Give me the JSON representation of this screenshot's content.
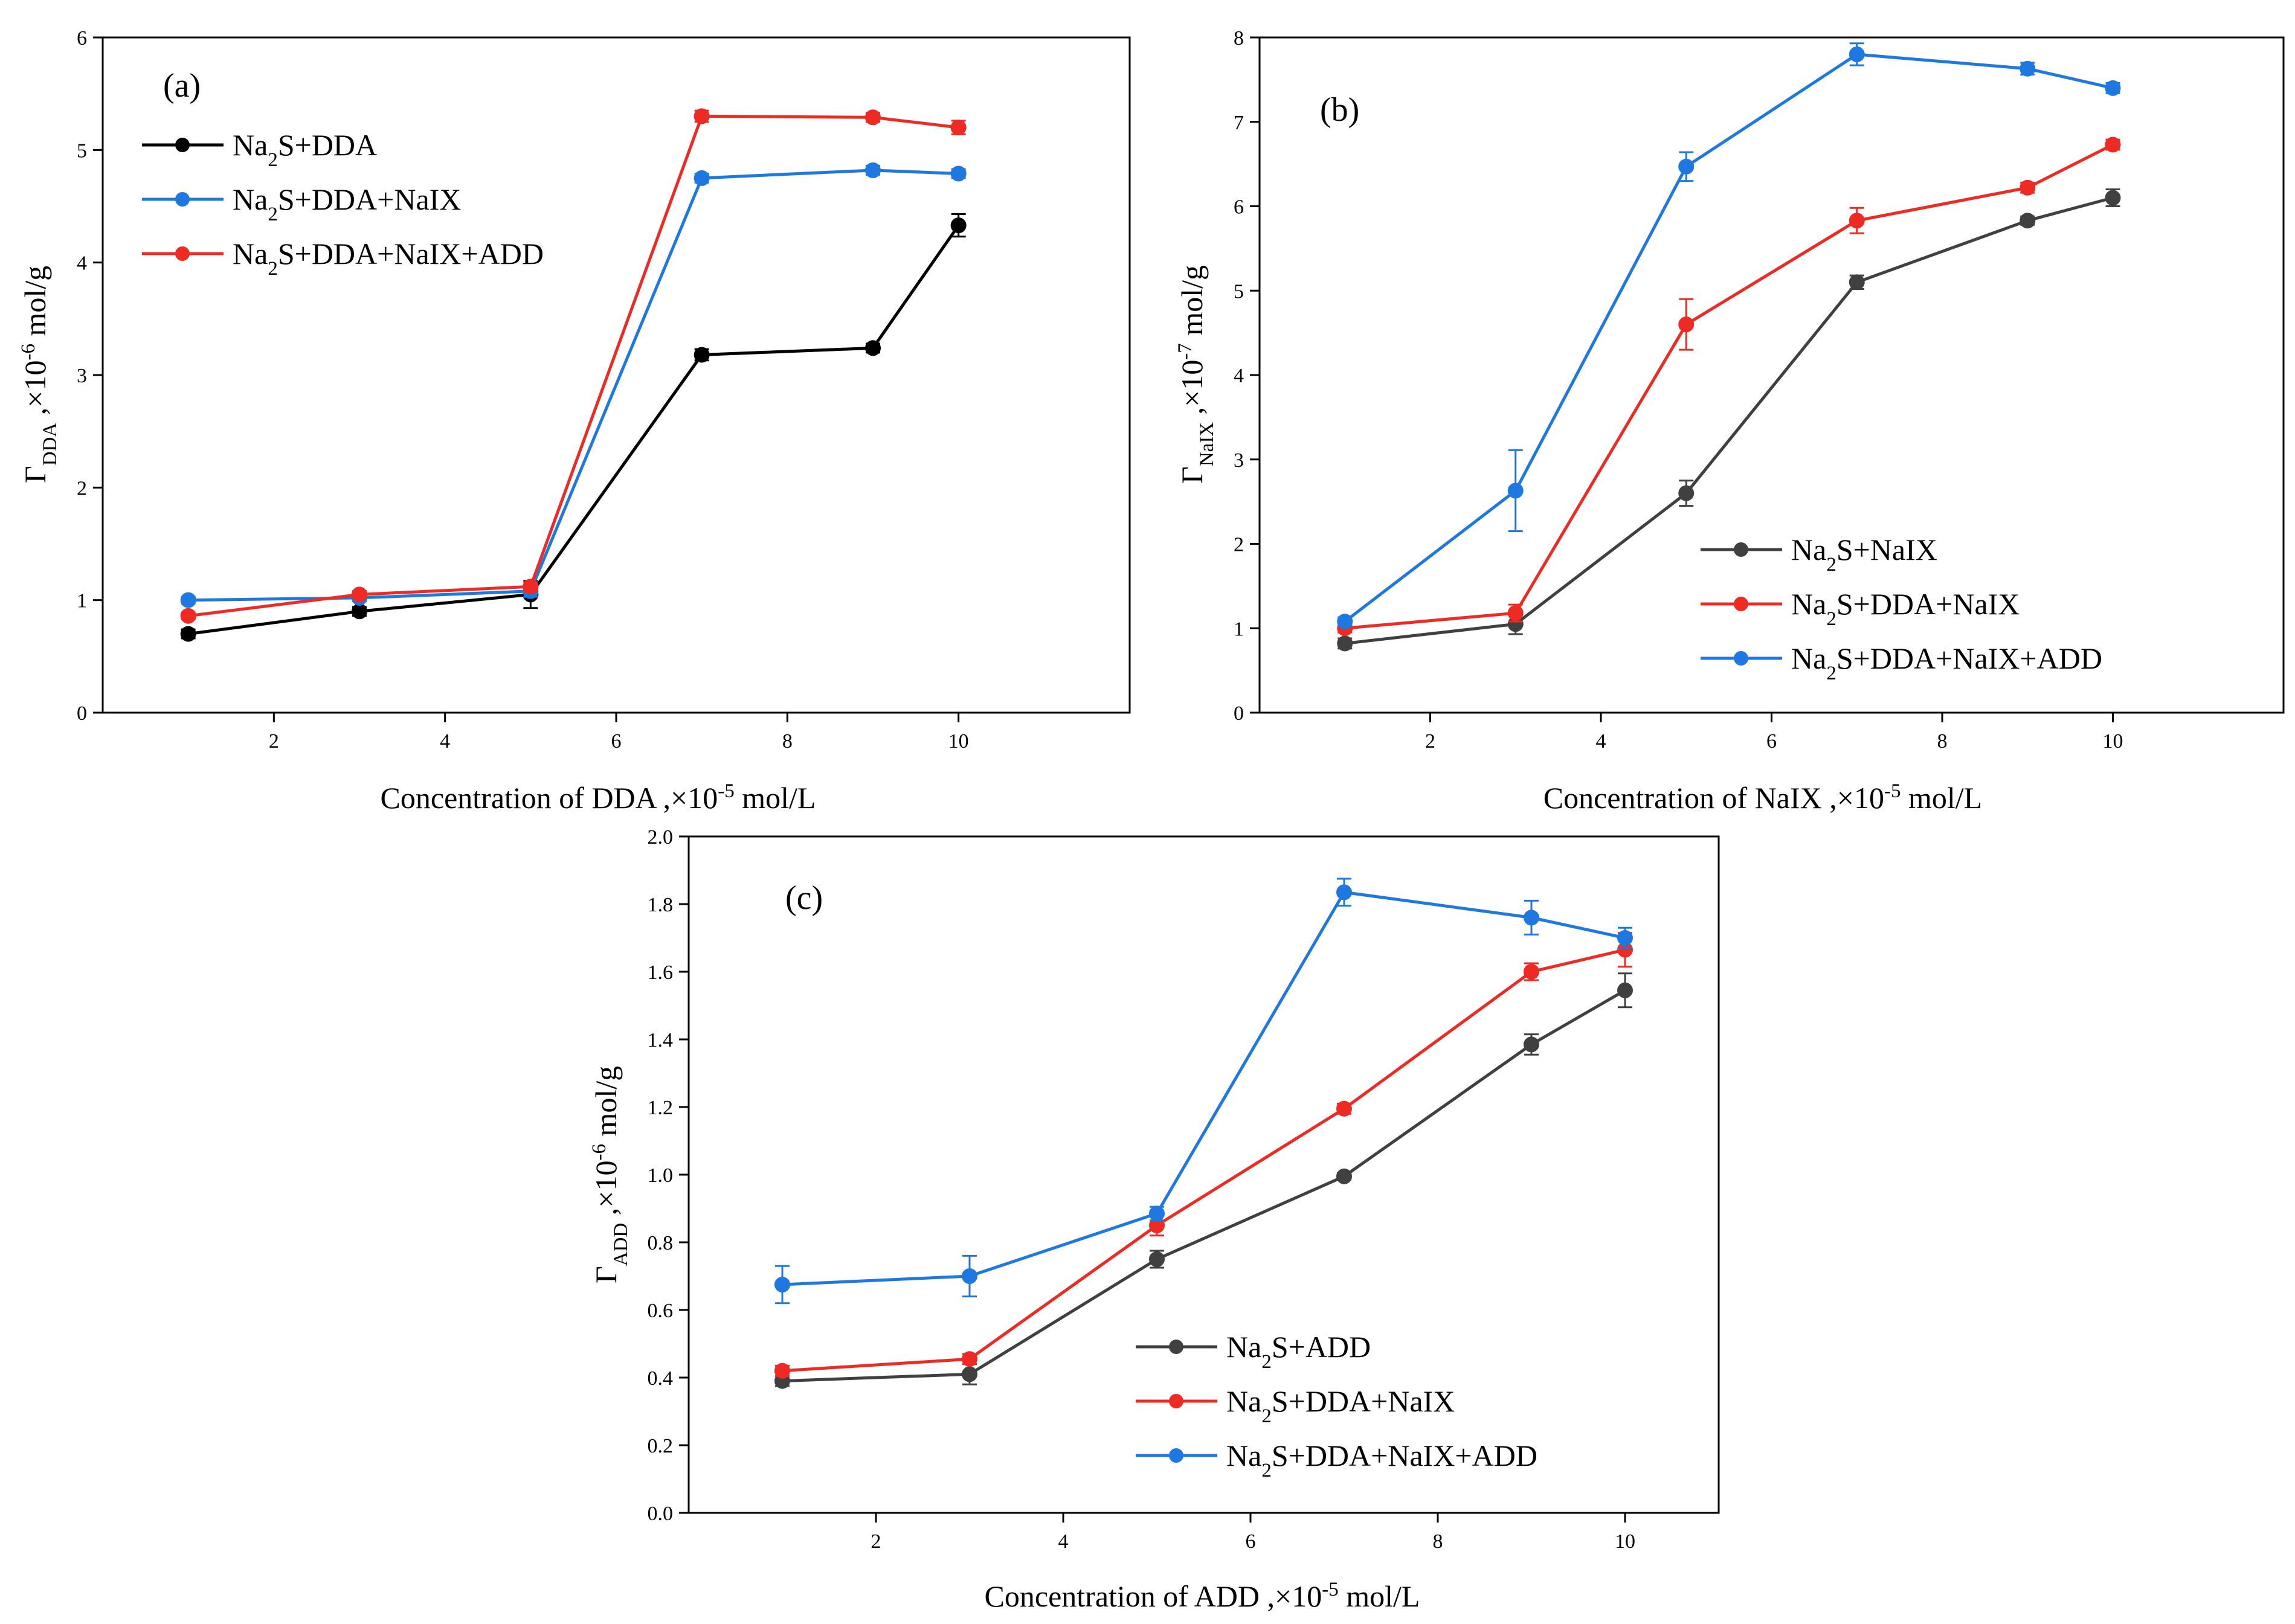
{
  "colors": {
    "black": "#000000",
    "gray": "#404040",
    "red": "#ee2a24",
    "blue": "#1f78e0"
  },
  "chart_data": [
    {
      "type": "line",
      "panel_label": "(a)",
      "xlabel": {
        "main": "Concentration of DDA ,×10",
        "sup": "-5",
        "unit": " mol/L"
      },
      "ylabel": {
        "symbol": "Γ",
        "sub": "DDA",
        "mid": " ,×10",
        "sup": "-6",
        "unit": " mol/g"
      },
      "xlim": [
        0,
        12
      ],
      "ylim": [
        0,
        6
      ],
      "x_ticks": [
        2,
        4,
        6,
        8,
        10
      ],
      "y_ticks": [
        0,
        1,
        2,
        3,
        4,
        5,
        6
      ],
      "legend_position": "top-left",
      "x": [
        1,
        3,
        5,
        7,
        9,
        10
      ],
      "series": [
        {
          "name": "Na2S+DDA",
          "parts": [
            [
              "Na",
              ""
            ],
            [
              "2",
              "sub"
            ],
            [
              "S+DDA",
              ""
            ]
          ],
          "color_key": "black",
          "values": [
            0.7,
            0.9,
            1.05,
            3.18,
            3.24,
            4.33
          ],
          "errors": [
            0.04,
            0.04,
            0.12,
            0.05,
            0.04,
            0.1
          ]
        },
        {
          "name": "Na2S+DDA+NaIX",
          "parts": [
            [
              "Na",
              ""
            ],
            [
              "2",
              "sub"
            ],
            [
              "S+DDA+NaIX",
              ""
            ]
          ],
          "color_key": "blue",
          "values": [
            1.0,
            1.02,
            1.08,
            4.75,
            4.82,
            4.79
          ],
          "errors": [
            0.03,
            0.03,
            0.05,
            0.04,
            0.04,
            0.04
          ]
        },
        {
          "name": "Na2S+DDA+NaIX+ADD",
          "parts": [
            [
              "Na",
              ""
            ],
            [
              "2",
              "sub"
            ],
            [
              "S+DDA+NaIX+ADD",
              ""
            ]
          ],
          "color_key": "red",
          "values": [
            0.86,
            1.05,
            1.12,
            5.3,
            5.29,
            5.2
          ],
          "errors": [
            0.03,
            0.03,
            0.04,
            0.05,
            0.04,
            0.06
          ]
        }
      ]
    },
    {
      "type": "line",
      "panel_label": "(b)",
      "xlabel": {
        "main": "Concentration of NaIX ,×10",
        "sup": "-5",
        "unit": " mol/L"
      },
      "ylabel": {
        "symbol": "Γ",
        "sub": "NaIX",
        "mid": " ,×10",
        "sup": "-7",
        "unit": " mol/g"
      },
      "xlim": [
        0,
        12
      ],
      "ylim": [
        0,
        8
      ],
      "x_ticks": [
        2,
        4,
        6,
        8,
        10
      ],
      "y_ticks": [
        0,
        1,
        2,
        3,
        4,
        5,
        6,
        7,
        8
      ],
      "legend_position": "lower-right",
      "x": [
        1,
        3,
        5,
        7,
        9,
        10
      ],
      "series": [
        {
          "name": "Na2S+NaIX",
          "parts": [
            [
              "Na",
              ""
            ],
            [
              "2",
              "sub"
            ],
            [
              "S+NaIX",
              ""
            ]
          ],
          "color_key": "gray",
          "values": [
            0.82,
            1.05,
            2.6,
            5.1,
            5.83,
            6.1
          ],
          "errors": [
            0.06,
            0.12,
            0.15,
            0.08,
            0.05,
            0.1
          ]
        },
        {
          "name": "Na2S+DDA+NaIX",
          "parts": [
            [
              "Na",
              ""
            ],
            [
              "2",
              "sub"
            ],
            [
              "S+DDA+NaIX",
              ""
            ]
          ],
          "color_key": "red",
          "values": [
            1.0,
            1.18,
            4.6,
            5.83,
            6.22,
            6.73
          ],
          "errors": [
            0.05,
            0.1,
            0.3,
            0.15,
            0.06,
            0.06
          ]
        },
        {
          "name": "Na2S+DDA+NaIX+ADD",
          "parts": [
            [
              "Na",
              ""
            ],
            [
              "2",
              "sub"
            ],
            [
              "S+DDA+NaIX+ADD",
              ""
            ]
          ],
          "color_key": "blue",
          "values": [
            1.08,
            2.63,
            6.47,
            7.8,
            7.63,
            7.4
          ],
          "errors": [
            0.05,
            0.48,
            0.17,
            0.13,
            0.07,
            0.06
          ]
        }
      ]
    },
    {
      "type": "line",
      "panel_label": "(c)",
      "xlabel": {
        "main": "Concentration of ADD ,×10",
        "sup": "-5",
        "unit": " mol/L"
      },
      "ylabel": {
        "symbol": "Γ",
        "sub": "ADD",
        "mid": " ,×10",
        "sup": "-6",
        "unit": " mol/g"
      },
      "xlim": [
        0,
        11
      ],
      "ylim": [
        0.0,
        2.0
      ],
      "x_ticks": [
        2,
        4,
        6,
        8,
        10
      ],
      "y_ticks": [
        "0.0",
        "0.2",
        "0.4",
        "0.6",
        "0.8",
        "1.0",
        "1.2",
        "1.4",
        "1.6",
        "1.8",
        "2.0"
      ],
      "legend_position": "lower-center",
      "x": [
        1,
        3,
        5,
        7,
        9,
        10
      ],
      "series": [
        {
          "name": "Na2S+ADD",
          "parts": [
            [
              "Na",
              ""
            ],
            [
              "2",
              "sub"
            ],
            [
              "S+ADD",
              ""
            ]
          ],
          "color_key": "gray",
          "values": [
            0.39,
            0.41,
            0.75,
            0.995,
            1.385,
            1.545
          ],
          "errors": [
            0.015,
            0.03,
            0.025,
            0.01,
            0.03,
            0.05
          ]
        },
        {
          "name": "Na2S+DDA+NaIX",
          "parts": [
            [
              "Na",
              ""
            ],
            [
              "2",
              "sub"
            ],
            [
              "S+DDA+NaIX",
              ""
            ]
          ],
          "color_key": "red",
          "values": [
            0.42,
            0.455,
            0.85,
            1.195,
            1.6,
            1.665
          ],
          "errors": [
            0.015,
            0.015,
            0.03,
            0.015,
            0.025,
            0.05
          ]
        },
        {
          "name": "Na2S+DDA+NaIX+ADD",
          "parts": [
            [
              "Na",
              ""
            ],
            [
              "2",
              "sub"
            ],
            [
              "S+DDA+NaIX+ADD",
              ""
            ]
          ],
          "color_key": "blue",
          "values": [
            0.675,
            0.7,
            0.885,
            1.835,
            1.76,
            1.7
          ],
          "errors": [
            0.055,
            0.06,
            0.02,
            0.04,
            0.05,
            0.03
          ]
        }
      ]
    }
  ]
}
